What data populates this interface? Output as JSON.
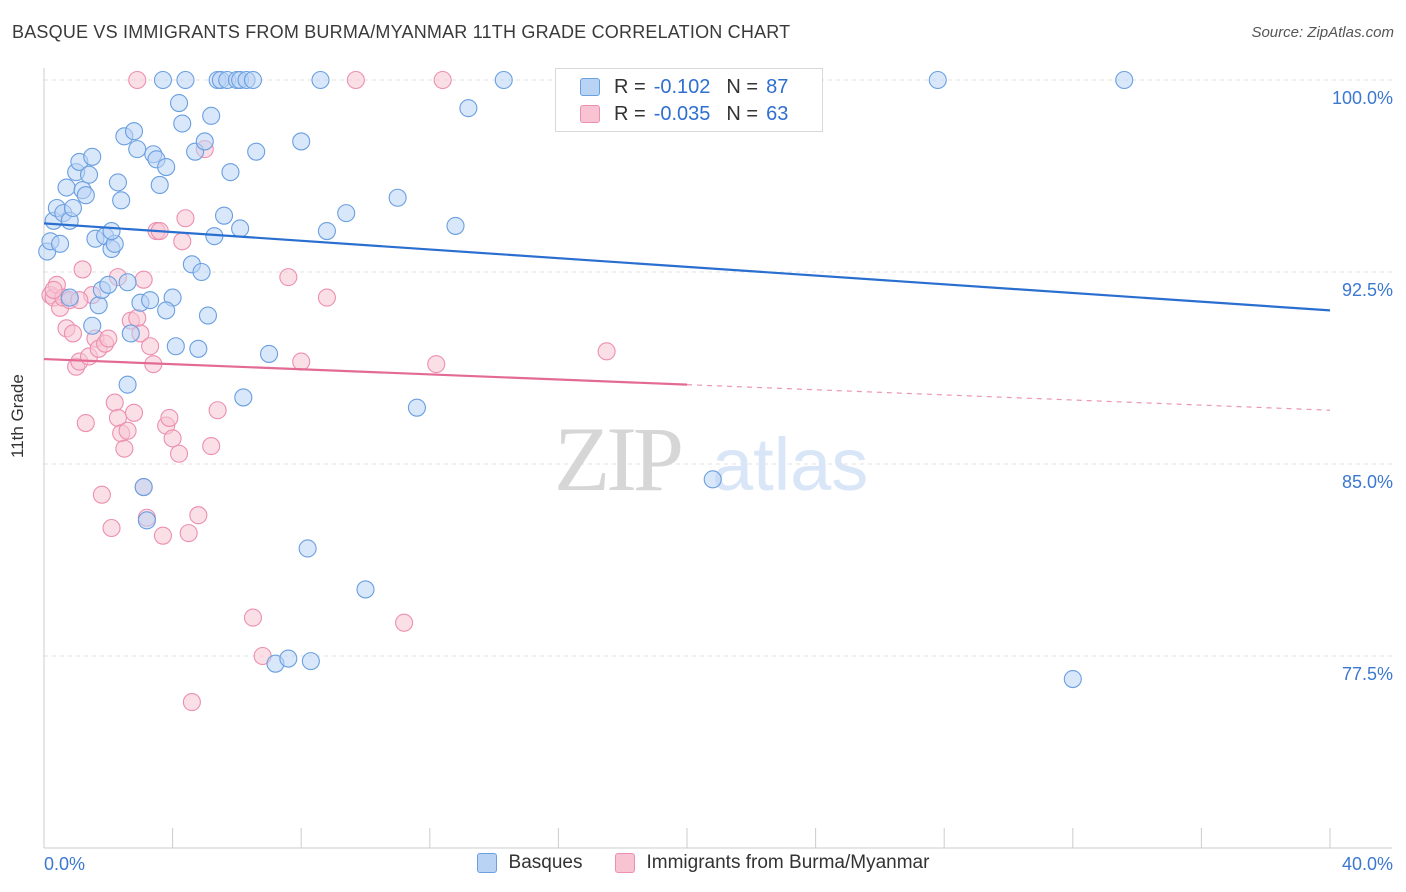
{
  "title": "BASQUE VS IMMIGRANTS FROM BURMA/MYANMAR 11TH GRADE CORRELATION CHART",
  "source": "Source: ZipAtlas.com",
  "watermark": {
    "zip": "ZIP",
    "atlas": "atlas"
  },
  "colors": {
    "blue_fill": "#b9d3f5",
    "blue_stroke": "#6a9fe0",
    "blue_line": "#2a6fd0",
    "pink_fill": "#f8c4d4",
    "pink_stroke": "#ec8fb0",
    "pink_line": "#e36a94",
    "axis_text": "#3b78d0",
    "grid": "#e2e2e2"
  },
  "legend": {
    "rows": [
      {
        "r_label": "R =",
        "r_value": "-0.102",
        "n_label": "N =",
        "n_value": "87"
      },
      {
        "r_label": "R =",
        "r_value": "-0.035",
        "n_label": "N =",
        "n_value": "63"
      }
    ]
  },
  "bottom_legend": {
    "series1": "Basques",
    "series2": "Immigrants from Burma/Myanmar"
  },
  "chart_data": {
    "type": "scatter",
    "title": "BASQUE VS IMMIGRANTS FROM BURMA/MYANMAR 11TH GRADE CORRELATION CHART",
    "xlabel": "",
    "ylabel": "11th Grade",
    "xlim": [
      0,
      40
    ],
    "ylim": [
      70,
      100.8
    ],
    "x_tick_labels": [
      "0.0%",
      "40.0%"
    ],
    "y_ticks": [
      100,
      92.5,
      85,
      77.5
    ],
    "y_tick_labels": [
      "100.0%",
      "92.5%",
      "85.0%",
      "77.5%"
    ],
    "series": [
      {
        "name": "Basques",
        "trend": {
          "x": [
            0,
            40
          ],
          "y": [
            94.4,
            91.0
          ],
          "solid_to": 40
        },
        "points": [
          [
            0.1,
            93.3
          ],
          [
            0.2,
            93.7
          ],
          [
            0.3,
            94.5
          ],
          [
            0.4,
            95.0
          ],
          [
            0.5,
            93.6
          ],
          [
            0.6,
            94.8
          ],
          [
            0.7,
            95.8
          ],
          [
            0.8,
            94.5
          ],
          [
            0.9,
            95.0
          ],
          [
            1.0,
            96.4
          ],
          [
            1.1,
            96.8
          ],
          [
            1.2,
            95.7
          ],
          [
            1.3,
            95.5
          ],
          [
            1.4,
            96.3
          ],
          [
            1.5,
            97.0
          ],
          [
            1.6,
            93.8
          ],
          [
            1.7,
            91.2
          ],
          [
            1.8,
            91.8
          ],
          [
            1.9,
            93.9
          ],
          [
            2.0,
            92.0
          ],
          [
            2.1,
            93.4
          ],
          [
            2.2,
            93.6
          ],
          [
            2.3,
            96.0
          ],
          [
            2.4,
            95.3
          ],
          [
            2.5,
            97.8
          ],
          [
            2.6,
            92.1
          ],
          [
            2.7,
            90.1
          ],
          [
            2.8,
            98.0
          ],
          [
            2.9,
            97.3
          ],
          [
            3.0,
            91.3
          ],
          [
            3.1,
            84.1
          ],
          [
            3.2,
            82.8
          ],
          [
            3.3,
            91.4
          ],
          [
            3.4,
            97.1
          ],
          [
            3.5,
            96.9
          ],
          [
            3.6,
            95.9
          ],
          [
            3.7,
            100.0
          ],
          [
            3.8,
            96.6
          ],
          [
            4.0,
            91.5
          ],
          [
            4.1,
            89.6
          ],
          [
            4.2,
            99.1
          ],
          [
            4.3,
            98.3
          ],
          [
            4.4,
            100.0
          ],
          [
            4.6,
            92.8
          ],
          [
            4.7,
            97.2
          ],
          [
            4.8,
            89.5
          ],
          [
            5.0,
            97.6
          ],
          [
            5.1,
            90.8
          ],
          [
            5.2,
            98.6
          ],
          [
            5.3,
            93.9
          ],
          [
            5.4,
            100.0
          ],
          [
            5.5,
            100.0
          ],
          [
            5.6,
            94.7
          ],
          [
            5.7,
            100.0
          ],
          [
            5.8,
            96.4
          ],
          [
            6.0,
            100.0
          ],
          [
            6.1,
            100.0
          ],
          [
            6.1,
            94.2
          ],
          [
            6.2,
            87.6
          ],
          [
            6.3,
            100.0
          ],
          [
            6.5,
            100.0
          ],
          [
            6.6,
            97.2
          ],
          [
            7.0,
            89.3
          ],
          [
            7.2,
            77.2
          ],
          [
            7.6,
            77.4
          ],
          [
            8.0,
            97.6
          ],
          [
            8.2,
            81.7
          ],
          [
            8.3,
            77.3
          ],
          [
            8.6,
            100.0
          ],
          [
            8.8,
            94.1
          ],
          [
            9.4,
            94.8
          ],
          [
            10.0,
            80.1
          ],
          [
            11.0,
            95.4
          ],
          [
            11.6,
            87.2
          ],
          [
            12.8,
            94.3
          ],
          [
            13.2,
            98.9
          ],
          [
            14.3,
            100.0
          ],
          [
            20.8,
            84.4
          ],
          [
            27.8,
            100.0
          ],
          [
            33.6,
            100.0
          ],
          [
            32.0,
            76.6
          ],
          [
            1.5,
            90.4
          ],
          [
            0.8,
            91.5
          ],
          [
            2.6,
            88.1
          ],
          [
            3.8,
            91.0
          ],
          [
            2.1,
            94.1
          ],
          [
            4.9,
            92.5
          ]
        ]
      },
      {
        "name": "Immigrants from Burma/Myanmar",
        "trend": {
          "x": [
            0,
            40
          ],
          "y": [
            89.1,
            87.1
          ],
          "solid_to": 20
        },
        "points": [
          [
            0.2,
            91.6
          ],
          [
            0.3,
            91.5
          ],
          [
            0.4,
            92.0
          ],
          [
            0.5,
            91.1
          ],
          [
            0.6,
            91.5
          ],
          [
            0.7,
            90.3
          ],
          [
            0.8,
            91.4
          ],
          [
            0.9,
            90.1
          ],
          [
            1.0,
            88.8
          ],
          [
            1.1,
            89.0
          ],
          [
            1.2,
            92.6
          ],
          [
            1.3,
            86.6
          ],
          [
            1.4,
            89.2
          ],
          [
            1.5,
            91.6
          ],
          [
            1.6,
            89.9
          ],
          [
            1.7,
            89.5
          ],
          [
            1.8,
            83.8
          ],
          [
            1.9,
            89.7
          ],
          [
            2.0,
            89.9
          ],
          [
            2.1,
            82.5
          ],
          [
            2.2,
            87.4
          ],
          [
            2.3,
            86.8
          ],
          [
            2.4,
            86.2
          ],
          [
            2.5,
            85.6
          ],
          [
            2.6,
            86.3
          ],
          [
            2.7,
            90.6
          ],
          [
            2.8,
            87.0
          ],
          [
            2.9,
            90.7
          ],
          [
            3.0,
            90.1
          ],
          [
            3.1,
            92.2
          ],
          [
            3.2,
            82.9
          ],
          [
            3.3,
            89.6
          ],
          [
            3.4,
            88.9
          ],
          [
            3.5,
            94.1
          ],
          [
            3.6,
            94.1
          ],
          [
            3.7,
            82.2
          ],
          [
            3.8,
            86.5
          ],
          [
            3.9,
            86.8
          ],
          [
            4.0,
            86.0
          ],
          [
            4.2,
            85.4
          ],
          [
            4.3,
            93.7
          ],
          [
            4.4,
            94.6
          ],
          [
            4.5,
            82.3
          ],
          [
            4.6,
            75.7
          ],
          [
            4.8,
            83.0
          ],
          [
            5.0,
            97.3
          ],
          [
            5.2,
            85.7
          ],
          [
            5.4,
            87.1
          ],
          [
            6.5,
            79.0
          ],
          [
            6.8,
            77.5
          ],
          [
            7.6,
            92.3
          ],
          [
            8.0,
            89.0
          ],
          [
            8.8,
            91.5
          ],
          [
            9.7,
            100.0
          ],
          [
            12.4,
            100.0
          ],
          [
            11.2,
            78.8
          ],
          [
            12.2,
            88.9
          ],
          [
            17.5,
            89.4
          ],
          [
            2.9,
            100.0
          ],
          [
            1.1,
            91.4
          ],
          [
            0.3,
            91.8
          ],
          [
            2.3,
            92.3
          ],
          [
            3.1,
            84.1
          ]
        ]
      }
    ]
  }
}
